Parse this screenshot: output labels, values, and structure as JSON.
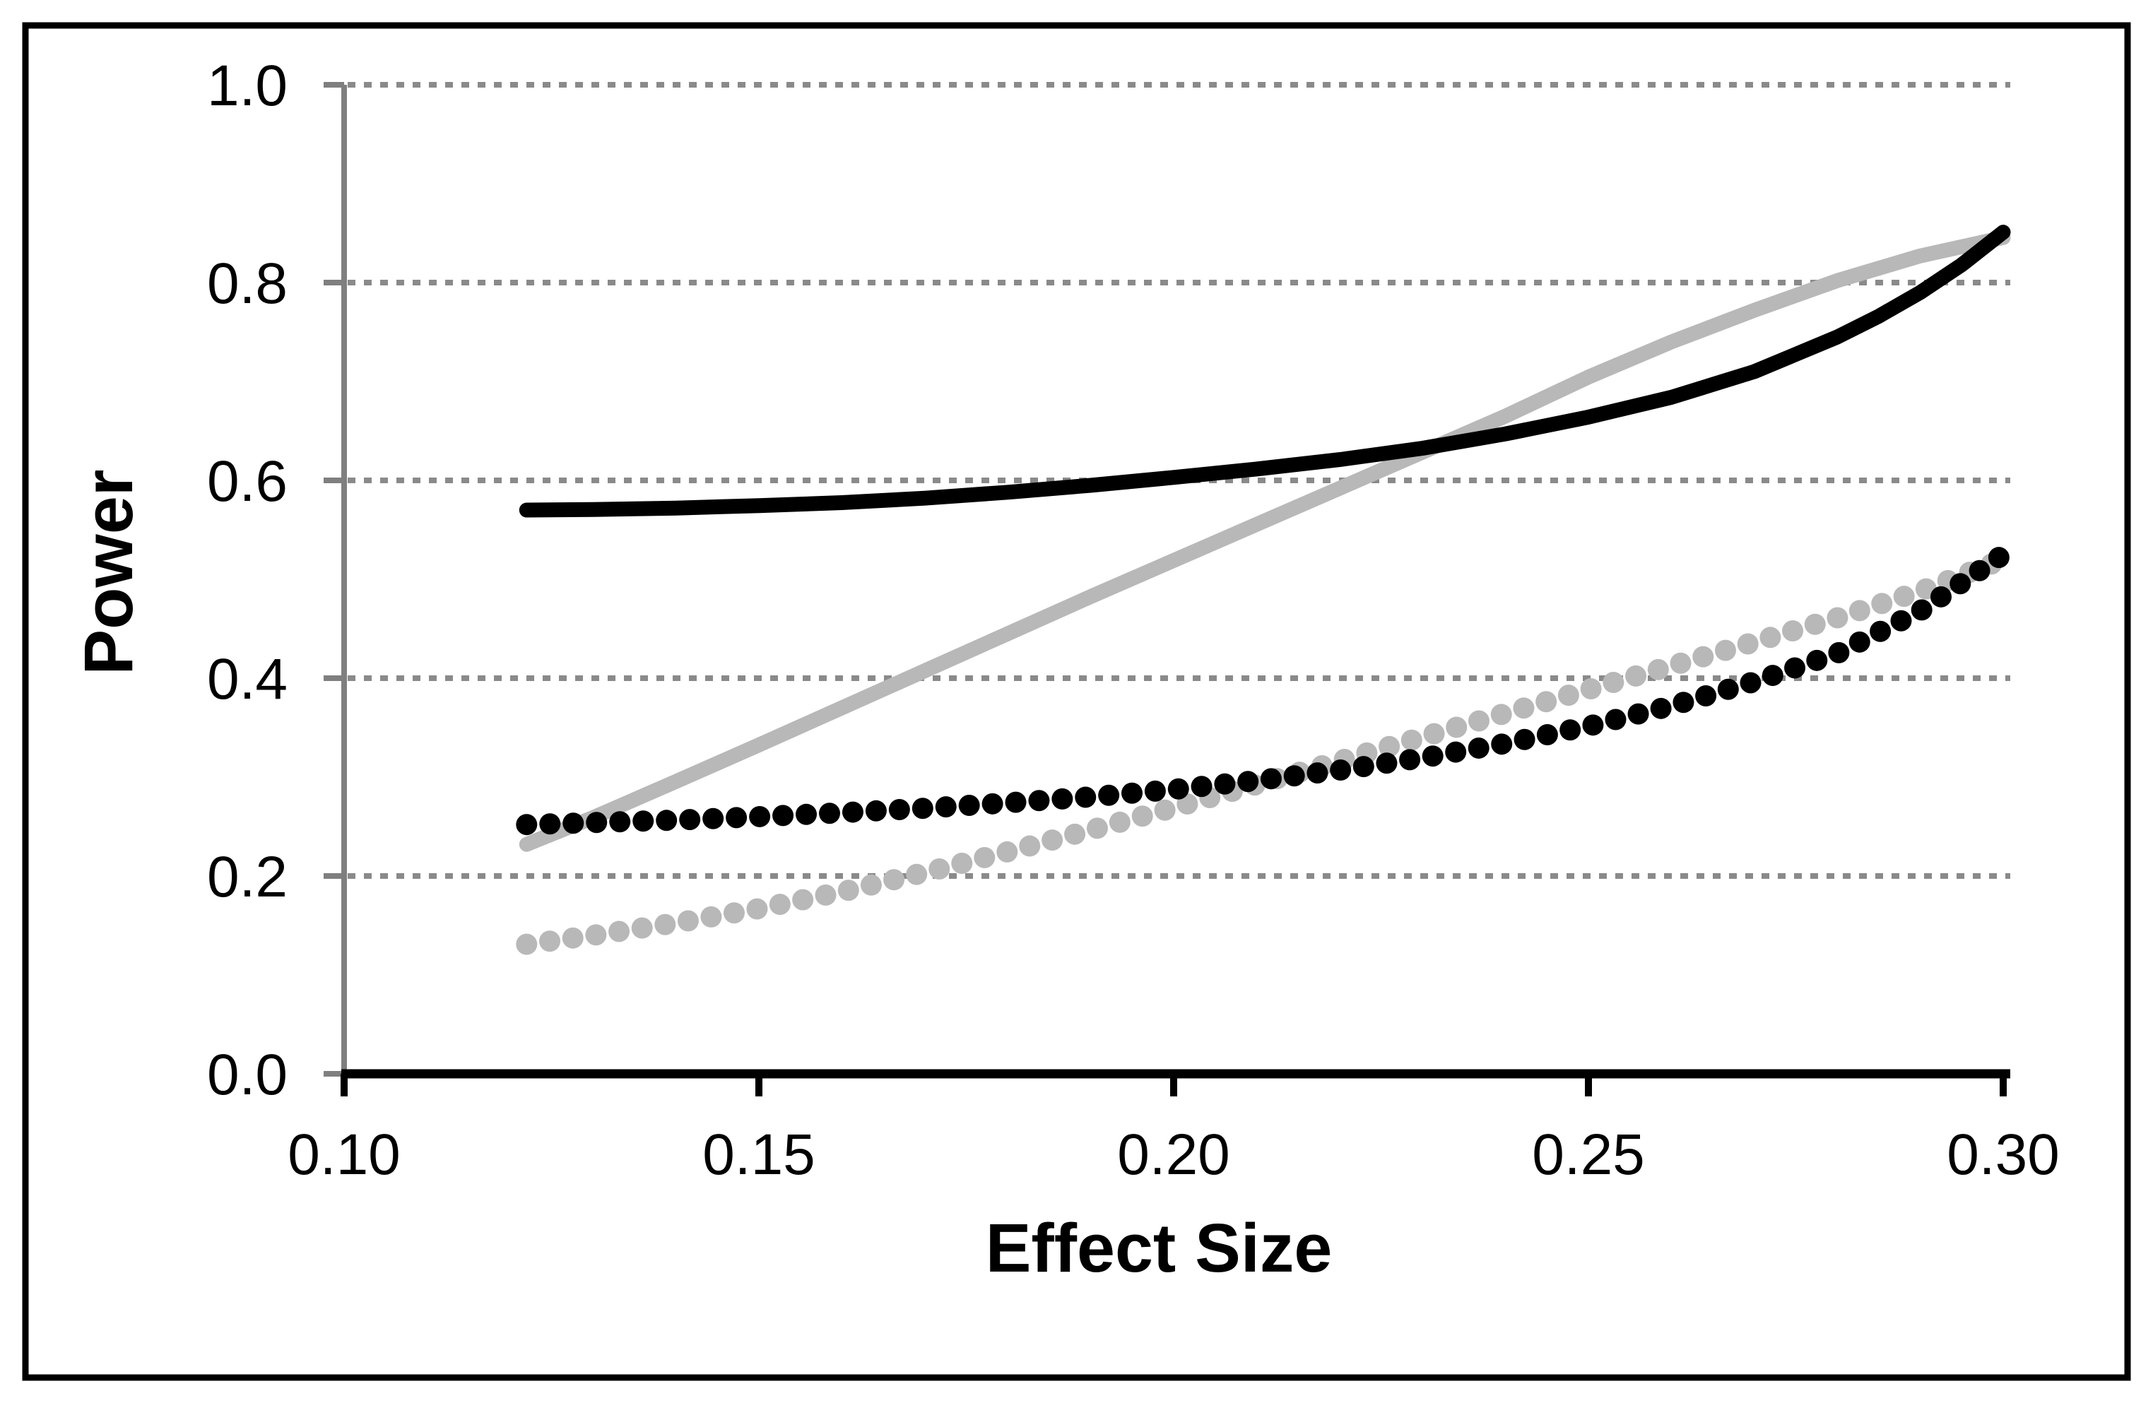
{
  "figure": {
    "border_color": "#000000",
    "background": "#ffffff"
  },
  "chart_data": {
    "type": "line",
    "title": "",
    "xlabel": "Effect Size",
    "ylabel": "Power",
    "xlim": [
      0.1,
      0.3
    ],
    "ylim": [
      0.0,
      1.0
    ],
    "x_tick_values": [
      0.1,
      0.15,
      0.2,
      0.25,
      0.3
    ],
    "x_tick_labels": [
      "0.10",
      "0.15",
      "0.20",
      "0.25",
      "0.30"
    ],
    "y_tick_values": [
      0.0,
      0.2,
      0.4,
      0.6,
      0.8,
      1.0
    ],
    "y_tick_labels": [
      "0.0",
      "0.2",
      "0.4",
      "0.6",
      "0.8",
      "1.0"
    ],
    "grid": {
      "axis": "y",
      "style": "dotted",
      "color": "#8a8a8a",
      "gridline_values": [
        0.2,
        0.4,
        0.6,
        0.8,
        1.0
      ]
    },
    "legend_position": "none",
    "axis_colors": {
      "x_axis": "#000000",
      "y_axis": "#7f7f7f"
    },
    "series": [
      {
        "name": "gray-dotted",
        "line_style": "dotted",
        "color": "#b8b8b8",
        "points": [
          [
            0.122,
            0.131
          ],
          [
            0.13,
            0.14
          ],
          [
            0.14,
            0.1525
          ],
          [
            0.15,
            0.167
          ],
          [
            0.16,
            0.184
          ],
          [
            0.17,
            0.2035
          ],
          [
            0.18,
            0.2245
          ],
          [
            0.19,
            0.2465
          ],
          [
            0.2,
            0.269
          ],
          [
            0.21,
            0.2925
          ],
          [
            0.22,
            0.3165
          ],
          [
            0.23,
            0.3405
          ],
          [
            0.24,
            0.3645
          ],
          [
            0.25,
            0.3885
          ],
          [
            0.26,
            0.4125
          ],
          [
            0.27,
            0.4365
          ],
          [
            0.28,
            0.461
          ],
          [
            0.29,
            0.488
          ],
          [
            0.3,
            0.52
          ]
        ]
      },
      {
        "name": "gray-solid",
        "line_style": "solid",
        "color": "#b8b8b8",
        "points": [
          [
            0.122,
            0.232
          ],
          [
            0.13,
            0.259
          ],
          [
            0.14,
            0.2955
          ],
          [
            0.15,
            0.3325
          ],
          [
            0.16,
            0.37
          ],
          [
            0.17,
            0.4075
          ],
          [
            0.18,
            0.445
          ],
          [
            0.19,
            0.4825
          ],
          [
            0.2,
            0.519
          ],
          [
            0.21,
            0.5555
          ],
          [
            0.22,
            0.592
          ],
          [
            0.23,
            0.6285
          ],
          [
            0.24,
            0.665
          ],
          [
            0.25,
            0.7045
          ],
          [
            0.26,
            0.74
          ],
          [
            0.27,
            0.772
          ],
          [
            0.28,
            0.802
          ],
          [
            0.29,
            0.827
          ],
          [
            0.3,
            0.8455
          ]
        ]
      },
      {
        "name": "black-dotted",
        "line_style": "dotted",
        "color": "#000000",
        "points": [
          [
            0.122,
            0.252
          ],
          [
            0.13,
            0.254
          ],
          [
            0.14,
            0.2565
          ],
          [
            0.15,
            0.26
          ],
          [
            0.16,
            0.264
          ],
          [
            0.17,
            0.2685
          ],
          [
            0.18,
            0.274
          ],
          [
            0.19,
            0.28
          ],
          [
            0.2,
            0.2875
          ],
          [
            0.21,
            0.2965
          ],
          [
            0.22,
            0.307
          ],
          [
            0.23,
            0.3195
          ],
          [
            0.24,
            0.334
          ],
          [
            0.25,
            0.3515
          ],
          [
            0.26,
            0.372
          ],
          [
            0.27,
            0.3965
          ],
          [
            0.28,
            0.425
          ],
          [
            0.29,
            0.468
          ],
          [
            0.3,
            0.525
          ]
        ]
      },
      {
        "name": "black-solid",
        "line_style": "solid",
        "color": "#000000",
        "points": [
          [
            0.122,
            0.57
          ],
          [
            0.13,
            0.5705
          ],
          [
            0.14,
            0.572
          ],
          [
            0.15,
            0.5745
          ],
          [
            0.16,
            0.5775
          ],
          [
            0.17,
            0.582
          ],
          [
            0.18,
            0.588
          ],
          [
            0.19,
            0.595
          ],
          [
            0.2,
            0.603
          ],
          [
            0.21,
            0.6115
          ],
          [
            0.22,
            0.621
          ],
          [
            0.23,
            0.6325
          ],
          [
            0.24,
            0.647
          ],
          [
            0.25,
            0.664
          ],
          [
            0.26,
            0.684
          ],
          [
            0.27,
            0.71
          ],
          [
            0.28,
            0.745
          ],
          [
            0.285,
            0.766
          ],
          [
            0.29,
            0.79
          ],
          [
            0.295,
            0.818
          ],
          [
            0.3,
            0.851
          ]
        ]
      }
    ]
  }
}
